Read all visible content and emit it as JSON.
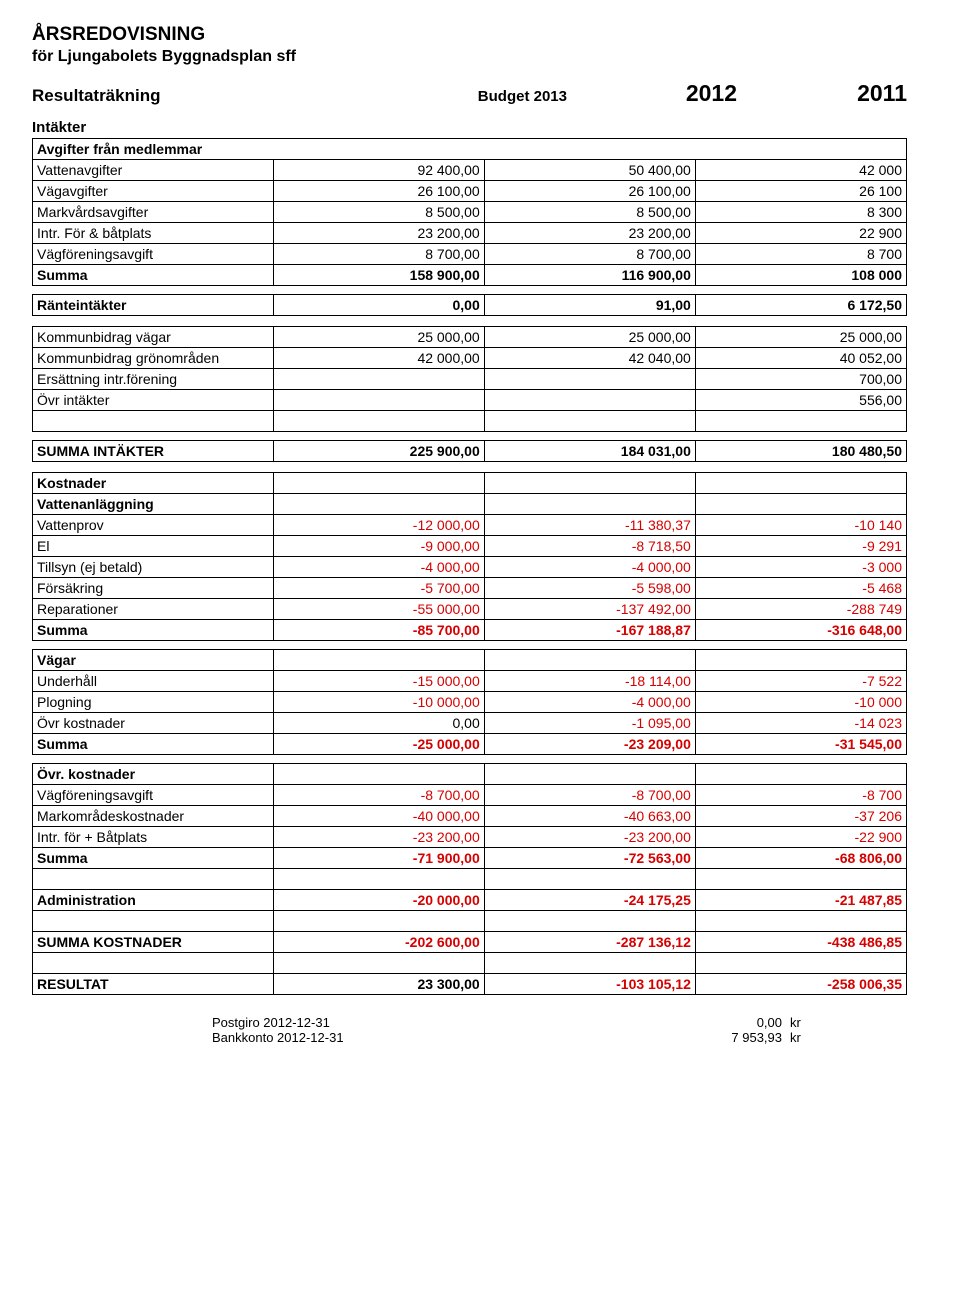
{
  "colors": {
    "text": "#000000",
    "negative": "#d60000",
    "border": "#000000",
    "background": "#ffffff"
  },
  "title": "ÅRSREDOVISNING",
  "subtitle": "för Ljungabolets Byggnadsplan sff",
  "header": {
    "resultLabel": "Resultaträkning",
    "budgetLabel": "Budget 2013",
    "year1": "2012",
    "year2": "2011"
  },
  "intakterLabel": "Intäkter",
  "rowsIntakter": {
    "avgifterHeader": "Avgifter från medlemmar",
    "data": [
      {
        "label": "Vattenavgifter",
        "c1": "92 400,00",
        "c2": "50 400,00",
        "c3": "42 000"
      },
      {
        "label": "Vägavgifter",
        "c1": "26 100,00",
        "c2": "26 100,00",
        "c3": "26 100"
      },
      {
        "label": "Markvårdsavgifter",
        "c1": "8 500,00",
        "c2": "8 500,00",
        "c3": "8 300"
      },
      {
        "label": "Intr. För & båtplats",
        "c1": "23 200,00",
        "c2": "23 200,00",
        "c3": "22 900"
      },
      {
        "label": "Vägföreningsavgift",
        "c1": "8 700,00",
        "c2": "8 700,00",
        "c3": "8 700"
      }
    ],
    "summa": {
      "label": "Summa",
      "c1": "158 900,00",
      "c2": "116 900,00",
      "c3": "108 000"
    }
  },
  "ranteintakter": {
    "label": "Ränteintäkter",
    "c1": "0,00",
    "c2": "91,00",
    "c3": "6 172,50"
  },
  "kommunBlock": [
    {
      "label": "Kommunbidrag vägar",
      "c1": "25 000,00",
      "c2": "25 000,00",
      "c3": "25 000,00"
    },
    {
      "label": "Kommunbidrag grönområden",
      "c1": "42 000,00",
      "c2": "42 040,00",
      "c3": "40 052,00"
    },
    {
      "label": "Ersättning intr.förening",
      "c1": "",
      "c2": "",
      "c3": "700,00"
    },
    {
      "label": "Övr intäkter",
      "c1": "",
      "c2": "",
      "c3": "556,00"
    }
  ],
  "summaIntakter": {
    "label": "SUMMA INTÄKTER",
    "c1": "225 900,00",
    "c2": "184 031,00",
    "c3": "180 480,50"
  },
  "kostnaderLabel": "Kostnader",
  "vattenBlock": {
    "header": "Vattenanläggning",
    "rows": [
      {
        "label": "Vattenprov",
        "c1": "-12 000,00",
        "c2": "-11 380,37",
        "c3": "-10 140"
      },
      {
        "label": "El",
        "c1": "-9 000,00",
        "c2": "-8 718,50",
        "c3": "-9 291"
      },
      {
        "label": "Tillsyn  (ej betald)",
        "c1": "-4 000,00",
        "c2": "-4 000,00",
        "c3": "-3 000"
      },
      {
        "label": "Försäkring",
        "c1": "-5 700,00",
        "c2": "-5 598,00",
        "c3": "-5 468"
      },
      {
        "label": "Reparationer",
        "c1": "-55 000,00",
        "c2": "-137 492,00",
        "c3": "-288 749"
      }
    ],
    "summa": {
      "label": "Summa",
      "c1": "-85 700,00",
      "c2": "-167 188,87",
      "c3": "-316 648,00"
    }
  },
  "vagarBlock": {
    "header": "Vägar",
    "rows": [
      {
        "label": "Underhåll",
        "c1": "-15 000,00",
        "c2": "-18 114,00",
        "c3": "-7 522"
      },
      {
        "label": "Plogning",
        "c1": "-10 000,00",
        "c2": "-4 000,00",
        "c3": "-10 000"
      },
      {
        "label": "Övr kostnader",
        "c1": "0,00",
        "c2": "-1 095,00",
        "c3": "-14 023"
      }
    ],
    "summa": {
      "label": "Summa",
      "c1": "-25 000,00",
      "c2": "-23 209,00",
      "c3": "-31 545,00"
    }
  },
  "ovrBlock": {
    "header": "Övr. kostnader",
    "rows": [
      {
        "label": "Vägföreningsavgift",
        "c1": "-8 700,00",
        "c2": "-8 700,00",
        "c3": "-8 700"
      },
      {
        "label": "Markområdeskostnader",
        "c1": "-40 000,00",
        "c2": "-40 663,00",
        "c3": "-37 206"
      },
      {
        "label": "Intr. för + Båtplats",
        "c1": "-23 200,00",
        "c2": "-23 200,00",
        "c3": "-22 900"
      }
    ],
    "summa": {
      "label": "Summa",
      "c1": "-71 900,00",
      "c2": "-72 563,00",
      "c3": "-68 806,00"
    }
  },
  "administration": {
    "label": "Administration",
    "c1": "-20 000,00",
    "c2": "-24 175,25",
    "c3": "-21 487,85"
  },
  "summaKostnader": {
    "label": "SUMMA KOSTNADER",
    "c1": "-202 600,00",
    "c2": "-287 136,12",
    "c3": "-438 486,85"
  },
  "resultat": {
    "label": "RESULTAT",
    "c1": "23 300,00",
    "c2": "-103 105,12",
    "c3": "-258 006,35"
  },
  "footer": [
    {
      "label": "Postgiro 2012-12-31",
      "val": "0,00",
      "unit": "kr"
    },
    {
      "label": "Bankkonto 2012-12-31",
      "val": "7 953,93",
      "unit": "kr"
    }
  ]
}
